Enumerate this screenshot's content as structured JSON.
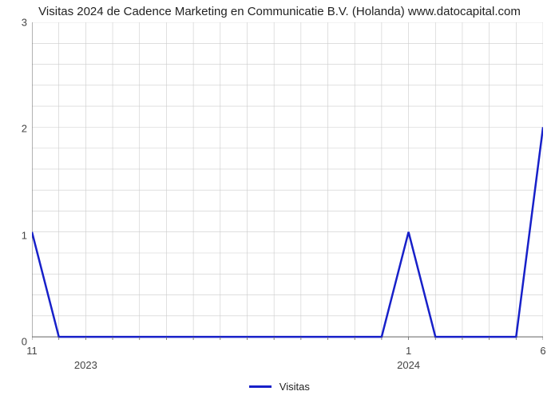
{
  "chart": {
    "type": "line",
    "title": "Visitas 2024 de Cadence Marketing en Communicatie B.V. (Holanda) www.datocapital.com",
    "title_fontsize": 15,
    "title_color": "#222222",
    "background_color": "#ffffff",
    "plot_bg_color": "#ffffff",
    "line_color": "#1720c9",
    "line_width": 2.5,
    "grid_color": "#cccccc",
    "grid_width": 0.6,
    "axis_color": "#666666",
    "axis_width": 1,
    "ylim": [
      0,
      3
    ],
    "ytick_step": 1,
    "y_ticks": [
      0,
      1,
      2,
      3
    ],
    "x_count": 20,
    "x_points": [
      0,
      1,
      2,
      3,
      4,
      5,
      6,
      7,
      8,
      9,
      10,
      11,
      12,
      13,
      14,
      15,
      16,
      17,
      18,
      19
    ],
    "values": [
      1,
      0,
      0,
      0,
      0,
      0,
      0,
      0,
      0,
      0,
      0,
      0,
      0,
      0,
      1,
      0,
      0,
      0,
      0,
      2
    ],
    "x_tick_labels": {
      "0": "11",
      "14": "1",
      "19": "6"
    },
    "x_major_labels": {
      "2": "2023",
      "14": "2024"
    },
    "legend_label": "Visitas",
    "tick_label_fontsize": 13,
    "tick_label_color": "#444444"
  }
}
